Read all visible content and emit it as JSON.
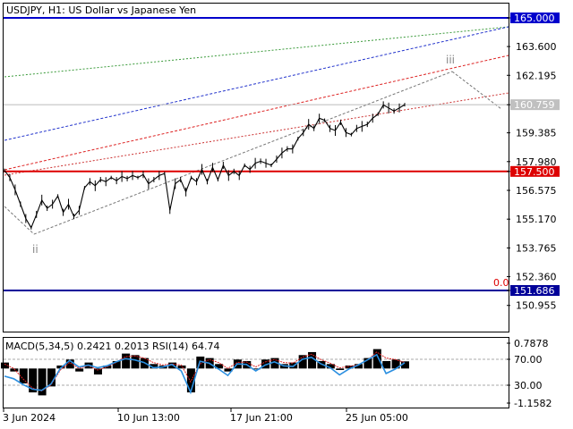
{
  "header": {
    "title": "USDJPY, H1:  US Dollar vs Japanese Yen"
  },
  "chart_data": [
    {
      "type": "line",
      "title": "USDJPY, H1:  US Dollar vs Japanese Yen",
      "ylim": [
        149.62,
        165.42
      ],
      "grid": false,
      "price_scale": [
        "165.000",
        "163.600",
        "162.195",
        "160.759",
        "159.385",
        "157.980",
        "157.500",
        "156.575",
        "155.170",
        "153.765",
        "152.360",
        "151.686",
        "150.955"
      ],
      "x_labels": [
        "3 Jun 2024",
        "10 Jun 13:00",
        "17 Jun 21:00",
        "25 Jun 05:00"
      ],
      "series": [
        {
          "values": [
            157.55,
            157.2,
            156.6,
            155.9,
            155.2,
            154.75,
            155.4,
            156.1,
            155.7,
            155.9,
            156.3,
            155.5,
            155.9,
            155.3,
            155.6,
            156.7,
            157.0,
            156.8,
            157.1,
            157.0,
            157.2,
            157.05,
            157.25,
            157.15,
            157.3,
            157.2,
            157.35,
            156.9,
            157.1,
            157.3,
            157.4,
            155.6,
            156.9,
            157.1,
            156.5,
            157.2,
            157.0,
            157.6,
            157.0,
            157.7,
            157.1,
            157.8,
            157.3,
            157.5,
            157.3,
            157.8,
            157.6,
            157.9,
            158.0,
            157.9,
            157.8,
            158.1,
            158.4,
            158.6,
            158.6,
            159.1,
            159.4,
            159.8,
            159.6,
            160.1,
            160.0,
            159.6,
            159.5,
            159.9,
            159.4,
            159.3,
            159.6,
            159.7,
            159.8,
            160.1,
            160.3,
            160.75,
            160.6,
            160.45,
            160.6,
            160.76
          ],
          "indicator_levels": [
            {
              "label": "165.000",
              "value": 165.0,
              "color": "#0000cc"
            },
            {
              "label": "157.500",
              "value": 157.5,
              "color": "#dd0000"
            },
            {
              "label": "151.686",
              "value": 151.686,
              "color": "#000099"
            }
          ],
          "current_price": {
            "label": "160.759",
            "value": 160.759
          }
        }
      ],
      "annotations": [
        {
          "text": "iii"
        },
        {
          "text": "ii"
        },
        {
          "text": "0.0"
        }
      ]
    },
    {
      "type": "line",
      "title": "MACD(5,34,5) 0.2421 0.2013 RSI(14) 64.74",
      "ylim": [
        -1.1582,
        0.7878
      ],
      "scale_labels": [
        "0.7878",
        "70.00",
        "30.00",
        "-1.1582"
      ],
      "series": [
        {
          "values": [
            0.2,
            -0.1,
            -0.5,
            -0.8,
            -0.9,
            -0.6,
            0.1,
            0.3,
            -0.1,
            0.2,
            -0.2,
            0.1,
            0.25,
            0.5,
            0.45,
            0.35,
            0.15,
            0.1,
            0.2,
            0.1,
            -0.8,
            0.4,
            0.35,
            0.15,
            -0.1,
            0.3,
            0.25,
            0.0,
            0.3,
            0.35,
            0.15,
            0.2,
            0.45,
            0.55,
            0.25,
            0.15,
            -0.05,
            0.1,
            0.15,
            0.35,
            0.65,
            0.25,
            0.3,
            0.24
          ]
        },
        {
          "values": [
            0.15,
            0.0,
            -0.35,
            -0.65,
            -0.75,
            -0.55,
            -0.05,
            0.2,
            0.0,
            0.1,
            -0.05,
            0.05,
            0.2,
            0.4,
            0.42,
            0.35,
            0.2,
            0.12,
            0.15,
            0.12,
            -0.45,
            0.15,
            0.3,
            0.2,
            0.0,
            0.2,
            0.22,
            0.05,
            0.22,
            0.3,
            0.2,
            0.18,
            0.38,
            0.48,
            0.3,
            0.18,
            0.02,
            0.07,
            0.12,
            0.28,
            0.55,
            0.35,
            0.3,
            0.2
          ]
        },
        {
          "values": [
            44,
            40,
            31,
            24,
            22,
            32,
            56,
            68,
            58,
            61,
            57,
            60,
            66,
            71,
            69,
            65,
            57,
            58,
            62,
            52,
            19,
            67,
            64,
            55,
            45,
            63,
            62,
            52,
            61,
            66,
            60,
            59,
            70,
            73,
            63,
            57,
            46,
            55,
            61,
            69,
            77,
            48,
            55,
            64.74
          ]
        }
      ]
    }
  ]
}
